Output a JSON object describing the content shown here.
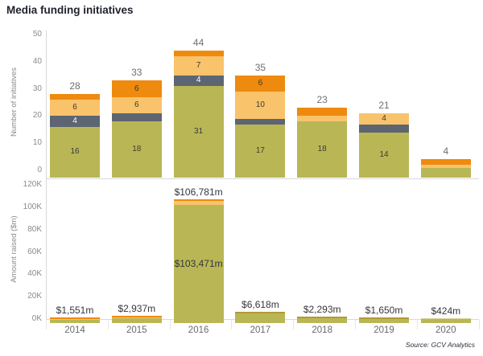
{
  "title": "Media funding initiatives",
  "source": "Source: GCV Analytics",
  "colors": {
    "olive": "#b9b755",
    "slate": "#5c6571",
    "light_orange": "#f9c36b",
    "dark_orange": "#ee8a0e",
    "gold": "#b29a35",
    "pale_gold": "#d8d09b",
    "axis_text": "#8a8a8a",
    "segment_label_dark": "#3a3a3a",
    "segment_label_light": "#ffffff",
    "total_label": "#6f6f73",
    "money_label": "#35353d"
  },
  "chart_data": [
    {
      "type": "bar",
      "stacked": true,
      "title": "",
      "xlabel": "",
      "ylabel": "Number of initiatives",
      "ylim": [
        0,
        50
      ],
      "yticks": [
        0,
        10,
        20,
        30,
        40,
        50
      ],
      "grid": false,
      "legend": "none",
      "categories": [
        "2014",
        "2015",
        "2016",
        "2017",
        "2018",
        "2019",
        "2020"
      ],
      "series": [
        {
          "name": "olive-segment",
          "values": [
            16,
            18,
            31,
            17,
            18,
            14,
            1
          ]
        },
        {
          "name": "slate-segment",
          "values": [
            4,
            3,
            4,
            2,
            0,
            3,
            0
          ]
        },
        {
          "name": "light-orange-segment",
          "values": [
            6,
            6,
            7,
            10,
            2,
            4,
            1
          ]
        },
        {
          "name": "dark-orange-segment",
          "values": [
            2,
            6,
            2,
            6,
            3,
            0,
            2
          ]
        }
      ],
      "totals": [
        28,
        33,
        44,
        35,
        23,
        21,
        4
      ],
      "segment_label_min_value": 4
    },
    {
      "type": "bar",
      "stacked": true,
      "title": "",
      "xlabel": "",
      "ylabel": "Amount raised ($m)",
      "ylim": [
        0,
        120000
      ],
      "ytick_labels": [
        "0K",
        "20K",
        "40K",
        "60K",
        "80K",
        "100K",
        "120K"
      ],
      "grid": false,
      "legend": "none",
      "categories": [
        "2014",
        "2015",
        "2016",
        "2017",
        "2018",
        "2019",
        "2020"
      ],
      "values": [
        1551,
        2937,
        106781,
        6618,
        2293,
        1650,
        424
      ],
      "bar_labels": [
        "$1,551m",
        "$2,937m",
        "$106,781m",
        "$6,618m",
        "$2,293m",
        "$1,650m",
        "$424m"
      ],
      "inner_label": {
        "category": "2016",
        "text": "$103,471m",
        "value": 103471
      },
      "cap_styles": [
        "orange",
        "orange",
        "orange-big",
        "gold",
        "gold",
        "gold",
        "pale"
      ]
    }
  ]
}
